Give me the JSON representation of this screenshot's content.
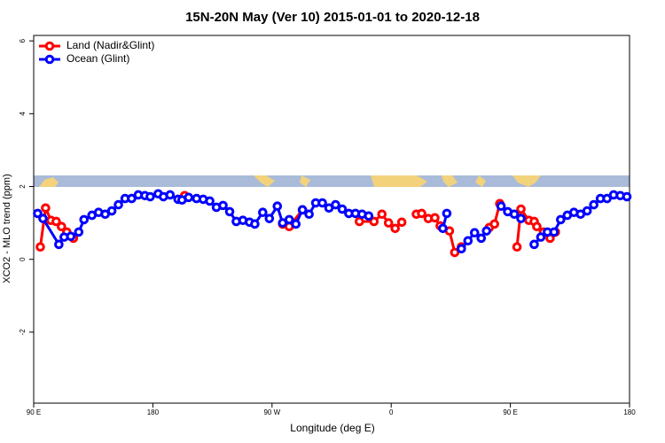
{
  "chart_data": {
    "type": "line",
    "title": "15N-20N May (Ver 10)   2015-01-01 to 2020-12-18",
    "x_label": "Longitude (deg E)",
    "y_label": "XCO2 - MLO trend (ppm)",
    "xlim": [
      90,
      540
    ],
    "xticks": [
      {
        "value": 90,
        "label": "90 E"
      },
      180,
      {
        "value": 270,
        "label": "90 W"
      },
      {
        "value": 360,
        "label": "0"
      },
      {
        "value": 450,
        "label": "90 E"
      },
      {
        "value": 540,
        "label": "180"
      }
    ],
    "ylim": [
      -3.95,
      6.15
    ],
    "yticks": [
      -2,
      0,
      2,
      4,
      6
    ],
    "legend": "topleft",
    "series": [
      {
        "name": "Land (Nadir&Glint)",
        "color": "#ff0000",
        "x": [
          95,
          99,
          103,
          107,
          111,
          115,
          120,
          null,
          204,
          null,
          278,
          283,
          293,
          null,
          336,
          347,
          353,
          358,
          363,
          368,
          null,
          379,
          383,
          388,
          393,
          397,
          404,
          408,
          413,
          null,
          434,
          438,
          442,
          null,
          455,
          458,
          464,
          468,
          470,
          475,
          480,
          484
        ],
        "values": [
          0.34,
          1.41,
          1.07,
          1.04,
          0.9,
          0.75,
          0.58,
          null,
          1.75,
          null,
          0.97,
          0.9,
          1.36,
          null,
          1.04,
          1.04,
          1.24,
          1.0,
          0.85,
          1.02,
          null,
          1.24,
          1.26,
          1.12,
          1.14,
          0.92,
          0.78,
          0.19,
          0.34,
          null,
          0.87,
          0.97,
          1.53,
          null,
          0.34,
          1.38,
          1.07,
          1.04,
          0.9,
          0.75,
          0.58,
          0.75
        ]
      },
      {
        "name": "Ocean (Glint)",
        "color": "#0000ff",
        "x": [
          93,
          97,
          109,
          113,
          118,
          124,
          128,
          134,
          139,
          144,
          149,
          154,
          159,
          164,
          169,
          174,
          178,
          184,
          188,
          193,
          199,
          202,
          207,
          213,
          218,
          223,
          228,
          233,
          238,
          243,
          248,
          253,
          257,
          263,
          268,
          274,
          278,
          283,
          288,
          293,
          298,
          303,
          308,
          313,
          318,
          323,
          328,
          333,
          338,
          343,
          null,
          399,
          402,
          null,
          413,
          418,
          423,
          428,
          432,
          null,
          443,
          448,
          453,
          458,
          null,
          468,
          473,
          478,
          483,
          488,
          493,
          498,
          503,
          508,
          513,
          518,
          523,
          528,
          533,
          538
        ],
        "values": [
          1.26,
          1.12,
          0.41,
          0.61,
          0.63,
          0.75,
          1.09,
          1.21,
          1.29,
          1.24,
          1.33,
          1.5,
          1.67,
          1.67,
          1.77,
          1.75,
          1.72,
          1.8,
          1.72,
          1.77,
          1.65,
          1.63,
          1.7,
          1.67,
          1.65,
          1.6,
          1.43,
          1.48,
          1.31,
          1.04,
          1.07,
          1.02,
          0.97,
          1.29,
          1.12,
          1.46,
          1.0,
          1.09,
          0.97,
          1.36,
          1.24,
          1.55,
          1.55,
          1.41,
          1.5,
          1.38,
          1.26,
          1.26,
          1.24,
          1.19,
          null,
          0.85,
          1.26,
          null,
          0.29,
          0.51,
          0.73,
          0.58,
          0.78,
          null,
          1.46,
          1.31,
          1.24,
          1.12,
          null,
          0.41,
          0.61,
          0.75,
          0.75,
          1.09,
          1.21,
          1.29,
          1.24,
          1.33,
          1.5,
          1.67,
          1.67,
          1.77,
          1.75,
          1.72
        ]
      }
    ]
  }
}
